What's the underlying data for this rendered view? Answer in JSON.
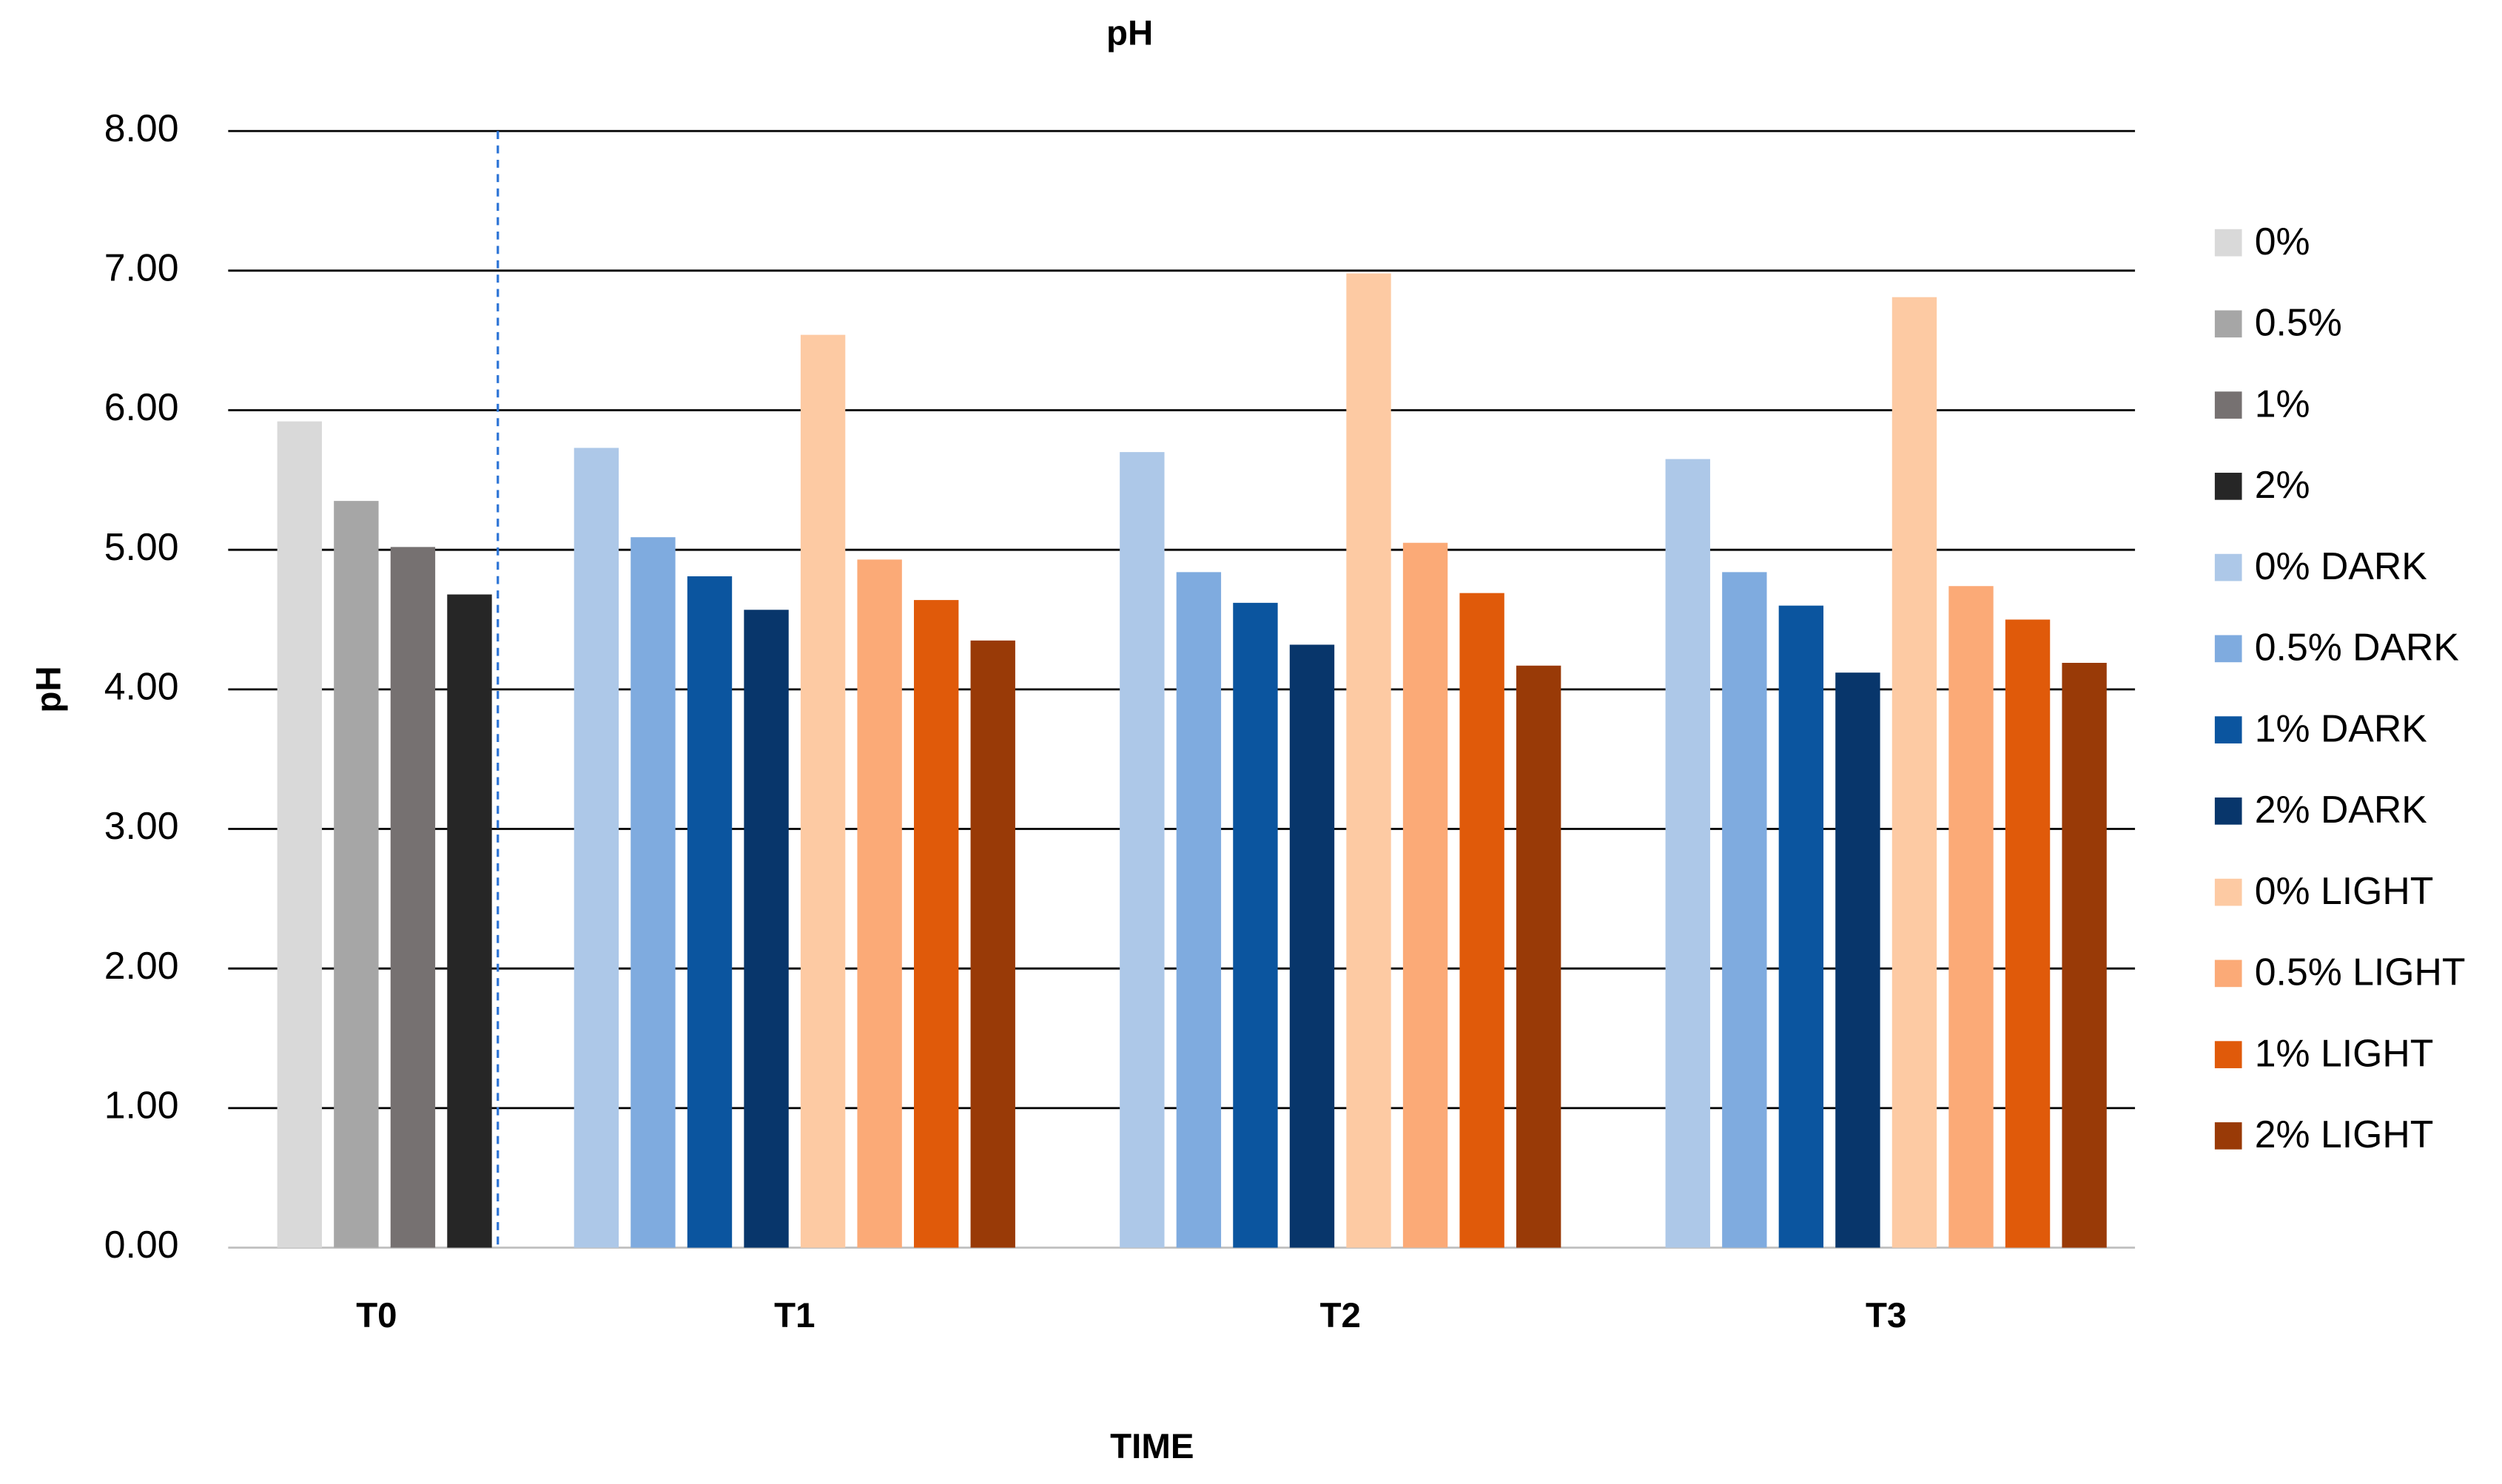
{
  "chart_data": {
    "type": "bar",
    "title": "pH",
    "x_label": "TIME",
    "y_label": "pH",
    "categories": [
      "T0",
      "T1",
      "T2",
      "T3"
    ],
    "ylim": [
      0,
      8
    ],
    "yticks": [
      {
        "value": 0,
        "label": "0.00"
      },
      {
        "value": 1,
        "label": "1.00"
      },
      {
        "value": 2,
        "label": "2.00"
      },
      {
        "value": 3,
        "label": "3.00"
      },
      {
        "value": 4,
        "label": "4.00"
      },
      {
        "value": 5,
        "label": "5.00"
      },
      {
        "value": 6,
        "label": "6.00"
      },
      {
        "value": 7,
        "label": "7.00"
      },
      {
        "value": 8,
        "label": "8.00"
      }
    ],
    "grid": true,
    "legend": "right",
    "series": [
      {
        "name": "0%",
        "color": "#d9d9d9",
        "values": [
          5.92,
          null,
          null,
          null
        ]
      },
      {
        "name": "0.5%",
        "color": "#a6a6a6",
        "values": [
          5.35,
          null,
          null,
          null
        ]
      },
      {
        "name": "1%",
        "color": "#767171",
        "values": [
          5.02,
          null,
          null,
          null
        ]
      },
      {
        "name": "2%",
        "color": "#262626",
        "values": [
          4.68,
          null,
          null,
          null
        ]
      },
      {
        "name": "0% DARK",
        "color": "#adc8e8",
        "values": [
          null,
          5.73,
          5.7,
          5.65
        ]
      },
      {
        "name": "0.5% DARK",
        "color": "#7fabdf",
        "values": [
          null,
          5.09,
          4.84,
          4.84
        ]
      },
      {
        "name": "1% DARK",
        "color": "#0b559f",
        "values": [
          null,
          4.81,
          4.62,
          4.6
        ]
      },
      {
        "name": "2% DARK",
        "color": "#08366b",
        "values": [
          null,
          4.57,
          4.32,
          4.12
        ]
      },
      {
        "name": "0% LIGHT",
        "color": "#fdcaa3",
        "values": [
          null,
          6.54,
          6.98,
          6.81
        ]
      },
      {
        "name": "0.5% LIGHT",
        "color": "#fbaa77",
        "values": [
          null,
          4.93,
          5.05,
          4.74
        ]
      },
      {
        "name": "1% LIGHT",
        "color": "#e05a0a",
        "values": [
          null,
          4.64,
          4.69,
          4.5
        ]
      },
      {
        "name": "2% LIGHT",
        "color": "#993a07",
        "values": [
          null,
          4.35,
          4.17,
          4.19
        ]
      }
    ]
  }
}
